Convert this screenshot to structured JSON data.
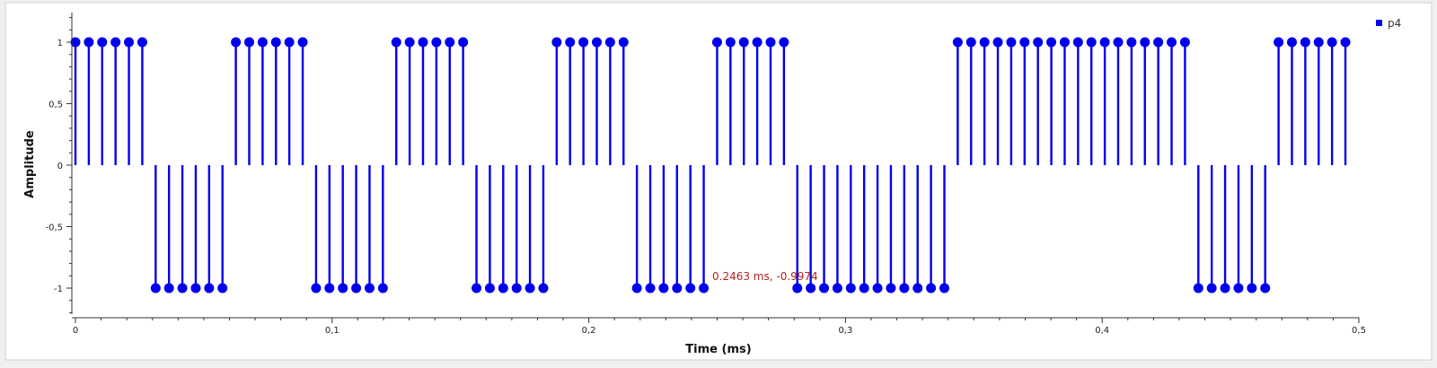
{
  "chart_data": {
    "type": "stem",
    "xlabel": "Time (ms)",
    "ylabel": "Amplitude",
    "xlim": [
      0,
      0.5
    ],
    "ylim": [
      -1.25,
      1.25
    ],
    "x_ticks": [
      {
        "value": 0,
        "label": "0"
      },
      {
        "value": 0.1,
        "label": "0,1"
      },
      {
        "value": 0.2,
        "label": "0,2"
      },
      {
        "value": 0.3,
        "label": "0,3"
      },
      {
        "value": 0.4,
        "label": "0,4"
      },
      {
        "value": 0.5,
        "label": "0,5"
      }
    ],
    "y_ticks": [
      {
        "value": 1,
        "label": "1"
      },
      {
        "value": 0.5,
        "label": "0,5"
      },
      {
        "value": 0,
        "label": "0"
      },
      {
        "value": -0.5,
        "label": "-0,5"
      },
      {
        "value": -1,
        "label": "-1"
      }
    ],
    "legend_position": "top-right",
    "series": [
      {
        "name": "p4",
        "color": "#0000ee",
        "x_start": 0,
        "x_step": 0.005208,
        "values": [
          1,
          1,
          1,
          1,
          1,
          1,
          -1,
          -1,
          -1,
          -1,
          -1,
          -1,
          1,
          1,
          1,
          1,
          1,
          1,
          -1,
          -1,
          -1,
          -1,
          -1,
          -1,
          1,
          1,
          1,
          1,
          1,
          1,
          -1,
          -1,
          -1,
          -1,
          -1,
          -1,
          1,
          1,
          1,
          1,
          1,
          1,
          -1,
          -1,
          -1,
          -1,
          -1,
          -1,
          1,
          1,
          1,
          1,
          1,
          1,
          -1,
          -1,
          -1,
          -1,
          -1,
          -1,
          -1,
          -1,
          -1,
          -1,
          -1,
          -1,
          1,
          1,
          1,
          1,
          1,
          1,
          1,
          1,
          1,
          1,
          1,
          1,
          1,
          1,
          1,
          1,
          1,
          1,
          -1,
          -1,
          -1,
          -1,
          -1,
          -1,
          1,
          1,
          1,
          1,
          1,
          1
        ]
      }
    ],
    "cursor_marker": {
      "text": "0.2463 ms, -0.9974",
      "x": 0.2463,
      "y": -0.9974
    }
  }
}
